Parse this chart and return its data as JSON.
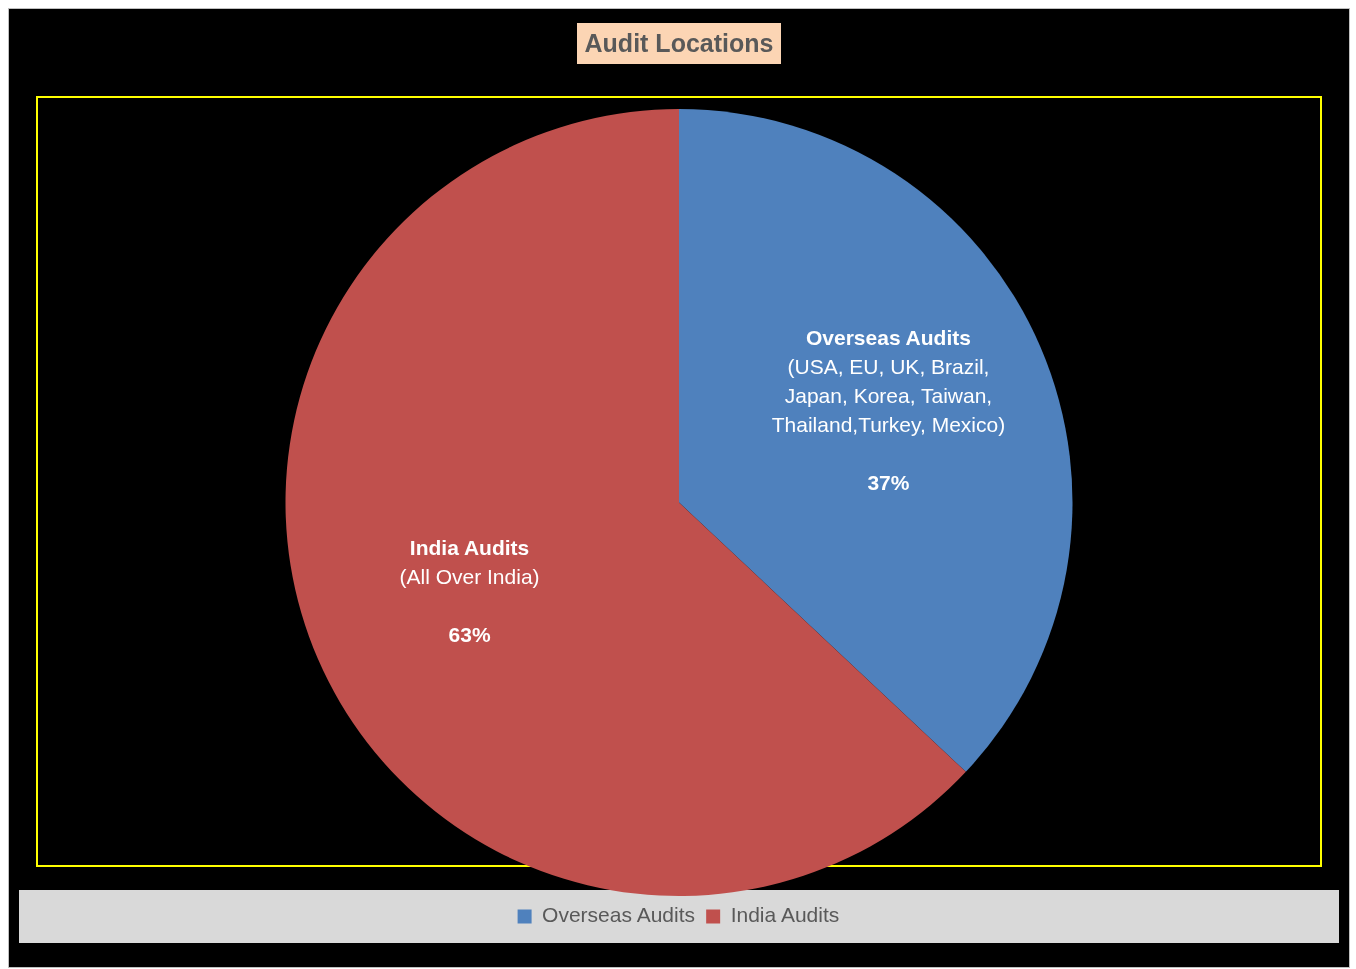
{
  "chart_data": {
    "type": "pie",
    "title": "Audit Locations",
    "categories": [
      "Overseas Audits",
      "India Audits"
    ],
    "values": [
      37,
      63
    ],
    "colors": [
      "#4f81bd",
      "#c0504d"
    ],
    "value_labels": [
      "37%",
      "63%"
    ],
    "annotations": [
      {
        "text": "(USA, EU, UK, Brazil, Japan, Korea, Taiwan, Thailand,Turkey, Mexico)",
        "x": "Overseas Audits"
      },
      {
        "text": "(All Over India)",
        "x": "India Audits"
      }
    ],
    "legend": "bottom"
  }
}
